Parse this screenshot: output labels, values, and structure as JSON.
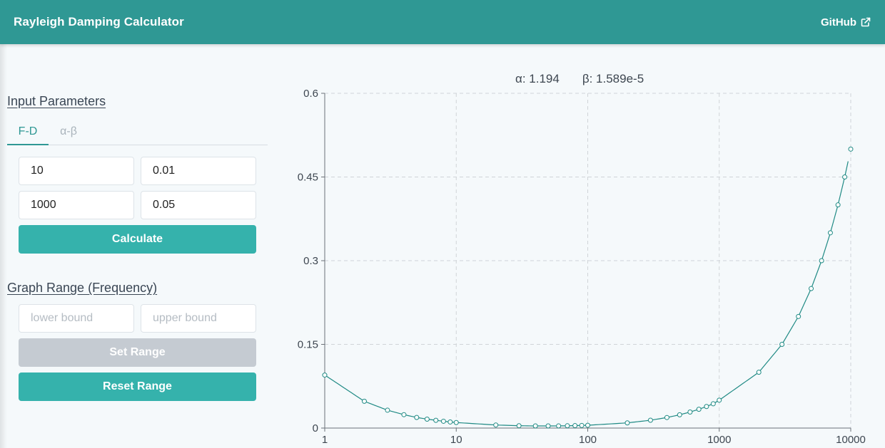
{
  "header": {
    "title": "Rayleigh Damping Calculator",
    "github_label": "GitHub",
    "external_icon": "external-link-icon"
  },
  "input_section": {
    "title": "Input Parameters",
    "tabs": [
      {
        "label": "F-D",
        "active": true
      },
      {
        "label": "α-β",
        "active": false
      }
    ],
    "rows": [
      {
        "frequency": "10",
        "damping": "0.01"
      },
      {
        "frequency": "1000",
        "damping": "0.05"
      }
    ],
    "calculate_label": "Calculate"
  },
  "range_section": {
    "title": "Graph Range (Frequency)",
    "lower_placeholder": "lower bound",
    "upper_placeholder": "upper bound",
    "set_label": "Set Range",
    "reset_label": "Reset Range"
  },
  "results": {
    "alpha_text": "α: 1.194",
    "beta_text": "β: 1.589e-5"
  },
  "colors": {
    "header": "#2f9894",
    "accent": "#35b2ac",
    "curve": "#1f8a84",
    "disabled": "#c5cbd2"
  },
  "chart_data": {
    "type": "line",
    "x_scale": "log",
    "xlim": [
      1,
      10000
    ],
    "ylim": [
      0,
      0.6
    ],
    "grid": true,
    "x_ticks": [
      1,
      10,
      100,
      1000,
      10000
    ],
    "x_tick_labels": [
      "1",
      "10",
      "100",
      "1000",
      "10000"
    ],
    "y_ticks": [
      0,
      0.15,
      0.3,
      0.45,
      0.6
    ],
    "y_tick_labels": [
      "0",
      "0.15",
      "0.3",
      "0.45",
      "0.6"
    ],
    "series": [
      {
        "x": [
          1,
          2,
          3,
          4,
          5,
          6,
          7,
          8,
          9,
          10,
          20,
          30,
          40,
          50,
          60,
          70,
          80,
          90,
          100,
          200,
          300,
          400,
          500,
          600,
          700,
          800,
          900,
          1000,
          2000,
          3000,
          4000,
          5000,
          6000,
          7000,
          8000,
          9000,
          10000
        ],
        "y": [
          0.095,
          0.048,
          0.032,
          0.024,
          0.019,
          0.016,
          0.0139,
          0.0122,
          0.0109,
          0.0099,
          0.0055,
          0.0042,
          0.0038,
          0.0038,
          0.0039,
          0.0041,
          0.0044,
          0.0047,
          0.005,
          0.0093,
          0.014,
          0.0189,
          0.0238,
          0.0287,
          0.0337,
          0.0386,
          0.0435,
          0.05,
          0.1,
          0.15,
          0.2,
          0.25,
          0.3,
          0.35,
          0.4,
          0.45,
          0.5
        ]
      }
    ]
  }
}
